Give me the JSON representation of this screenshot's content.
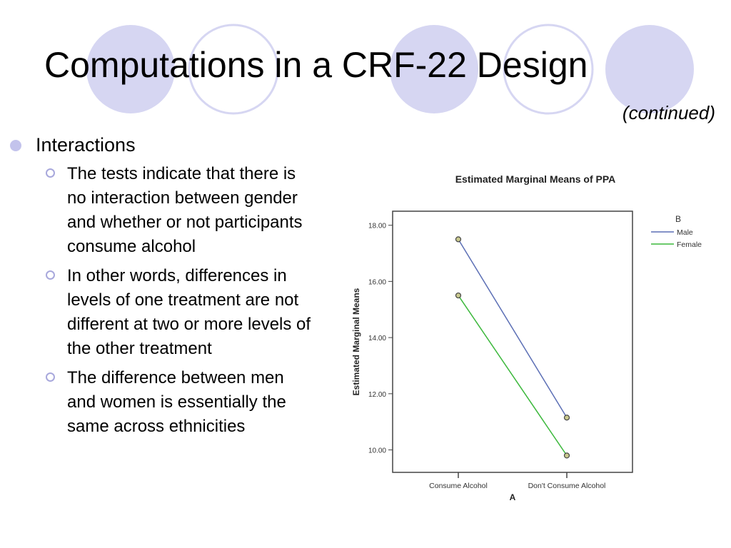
{
  "slide": {
    "title": "Computations in a CRF-22 Design",
    "subtitle": "(continued)",
    "bullet": "Interactions",
    "subbullets": [
      "The tests indicate that there is no interaction between gender and whether or not participants consume alcohol",
      "In other words, differences in levels of one treatment are not different at two or more levels of the other treatment",
      "The difference between men and women is essentially the same across ethnicities"
    ]
  },
  "colors": {
    "decor_circle": "#d6d6f2",
    "bullet_dot": "#c3c3ec",
    "male_line": "#5c6fb5",
    "female_line": "#3cb83c"
  },
  "chart_data": {
    "type": "line",
    "title": "Estimated Marginal Means of PPA",
    "xlabel": "A",
    "ylabel": "Estimated Marginal Means",
    "categories": [
      "Consume Alcohol",
      "Don't Consume Alcohol"
    ],
    "ylim": [
      9.2,
      18.5
    ],
    "yticks": [
      "10.00",
      "12.00",
      "14.00",
      "16.00",
      "18.00"
    ],
    "legend_title": "B",
    "legend_position": "right",
    "grid": false,
    "series": [
      {
        "name": "Male",
        "values": [
          17.5,
          11.15
        ],
        "color": "#5c6fb5"
      },
      {
        "name": "Female",
        "values": [
          15.5,
          9.8
        ],
        "color": "#3cb83c"
      }
    ]
  }
}
